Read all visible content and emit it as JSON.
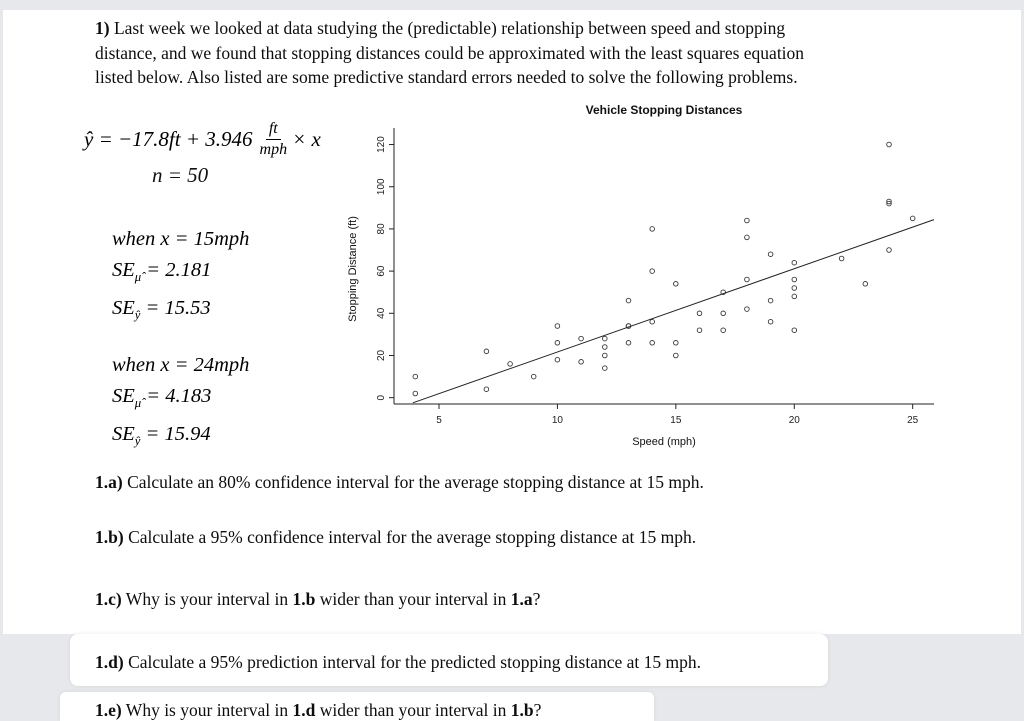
{
  "intro": {
    "bold_prefix": "1)",
    "lines": [
      "Last week we looked at data studying the (predictable) relationship between speed and stopping",
      "distance, and we found that stopping distances could be approximated with the least squares equation",
      "listed below. Also listed are some predictive standard errors needed to solve the following problems."
    ]
  },
  "equation": {
    "lhs": "ŷ = −17.8ft + 3.946",
    "frac_num": "ft",
    "frac_den": "mph",
    "rhs": "× x",
    "sample_size": "n = 50"
  },
  "cases": [
    {
      "when": "when x = 15mph",
      "se": [
        {
          "base": "SE",
          "sub": "μ̂",
          "rest": " = 2.181"
        },
        {
          "base": "SE",
          "sub": "ŷ",
          "rest": " = 15.53"
        }
      ]
    },
    {
      "when": "when x = 24mph",
      "se": [
        {
          "base": "SE",
          "sub": "μ̂",
          "rest": " = 4.183"
        },
        {
          "base": "SE",
          "sub": "ŷ",
          "rest": " = 15.94"
        }
      ]
    }
  ],
  "questions": [
    {
      "label": "1.a)",
      "p0": "Calculate an 80% confidence interval for the average stopping distance at 15 mph."
    },
    {
      "label": "1.b)",
      "p0": "Calculate a 95% confidence interval for the average stopping distance at 15 mph."
    },
    {
      "label": "1.c)",
      "p0": "Why is your interval in ",
      "b1": "1.b",
      "p2": " wider than your interval in ",
      "b3": "1.a",
      "p4": "?"
    },
    {
      "label": "1.d)",
      "p0": "Calculate a 95% prediction interval for the predicted stopping distance at 15 mph."
    },
    {
      "label": "1.e)",
      "p0": "Why is your interval in ",
      "b1": "1.d",
      "p2": " wider than your interval in ",
      "b3": "1.b",
      "p4": "?"
    }
  ],
  "chart_data": {
    "type": "scatter",
    "title": "Vehicle Stopping Distances",
    "xlabel": "Speed (mph)",
    "ylabel": "Stopping Distance (ft)",
    "xlim": [
      3.1,
      25.9
    ],
    "ylim": [
      -3,
      125
    ],
    "xticks": [
      5,
      10,
      15,
      20,
      25
    ],
    "yticks": [
      0,
      20,
      40,
      60,
      80,
      100,
      120
    ],
    "grid": false,
    "points": [
      [
        4,
        2
      ],
      [
        4,
        10
      ],
      [
        7,
        4
      ],
      [
        7,
        22
      ],
      [
        8,
        16
      ],
      [
        9,
        10
      ],
      [
        10,
        18
      ],
      [
        10,
        26
      ],
      [
        10,
        34
      ],
      [
        11,
        17
      ],
      [
        11,
        28
      ],
      [
        12,
        14
      ],
      [
        12,
        20
      ],
      [
        12,
        24
      ],
      [
        12,
        28
      ],
      [
        13,
        26
      ],
      [
        13,
        34
      ],
      [
        13,
        34
      ],
      [
        13,
        46
      ],
      [
        14,
        26
      ],
      [
        14,
        36
      ],
      [
        14,
        60
      ],
      [
        14,
        80
      ],
      [
        15,
        20
      ],
      [
        15,
        26
      ],
      [
        15,
        54
      ],
      [
        16,
        32
      ],
      [
        16,
        40
      ],
      [
        17,
        32
      ],
      [
        17,
        40
      ],
      [
        17,
        50
      ],
      [
        18,
        42
      ],
      [
        18,
        56
      ],
      [
        18,
        76
      ],
      [
        18,
        84
      ],
      [
        19,
        36
      ],
      [
        19,
        46
      ],
      [
        19,
        68
      ],
      [
        20,
        32
      ],
      [
        20,
        48
      ],
      [
        20,
        52
      ],
      [
        20,
        56
      ],
      [
        20,
        64
      ],
      [
        22,
        66
      ],
      [
        23,
        54
      ],
      [
        24,
        70
      ],
      [
        24,
        92
      ],
      [
        24,
        93
      ],
      [
        24,
        120
      ],
      [
        25,
        85
      ]
    ],
    "regression_line": {
      "intercept": -17.8,
      "slope": 3.946,
      "x_start": 3.9,
      "x_end": 25.9
    }
  }
}
